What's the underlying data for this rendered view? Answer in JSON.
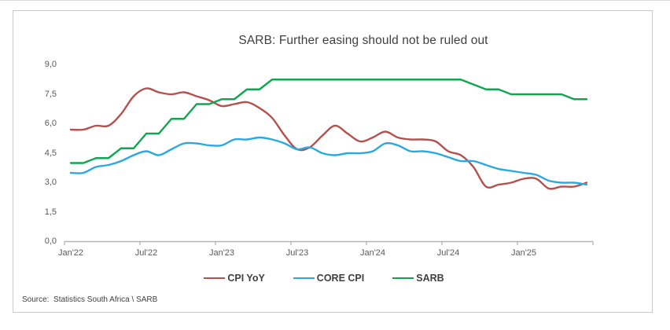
{
  "chart_data": {
    "type": "line",
    "title": "SARB: Further easing should not be ruled out",
    "source": "Source:  Statistics South Africa \\ SARB",
    "grid": false,
    "legend_position": "bottom",
    "decimal_separator": ",",
    "y_axis": {
      "ylim": [
        0,
        9
      ],
      "ticks": [
        0,
        1.5,
        3,
        4.5,
        6,
        7.5,
        9
      ],
      "tick_labels": [
        "0,0",
        "1,5",
        "3,0",
        "4,5",
        "6,0",
        "7,5",
        "9,0"
      ]
    },
    "x_axis": {
      "tick_labels": [
        "Jan'22",
        "Jul'22",
        "Jan'23",
        "Jul'23",
        "Jan'24",
        "Jul'24",
        "Jan'25"
      ]
    },
    "x": [
      "2022-01",
      "2022-02",
      "2022-03",
      "2022-04",
      "2022-05",
      "2022-06",
      "2022-07",
      "2022-08",
      "2022-09",
      "2022-10",
      "2022-11",
      "2022-12",
      "2023-01",
      "2023-02",
      "2023-03",
      "2023-04",
      "2023-05",
      "2023-06",
      "2023-07",
      "2023-08",
      "2023-09",
      "2023-10",
      "2023-11",
      "2023-12",
      "2024-01",
      "2024-02",
      "2024-03",
      "2024-04",
      "2024-05",
      "2024-06",
      "2024-07",
      "2024-08",
      "2024-09",
      "2024-10",
      "2024-11",
      "2024-12",
      "2025-01",
      "2025-02",
      "2025-03",
      "2025-04",
      "2025-05",
      "2025-06"
    ],
    "series": [
      {
        "name": "CPI YoY",
        "color": "#b4514c",
        "smooth": true,
        "values": [
          5.7,
          5.7,
          5.9,
          5.9,
          6.5,
          7.4,
          7.8,
          7.6,
          7.5,
          7.6,
          7.4,
          7.2,
          6.9,
          7.0,
          7.1,
          6.8,
          6.3,
          5.4,
          4.7,
          4.8,
          5.4,
          5.9,
          5.5,
          5.1,
          5.3,
          5.6,
          5.3,
          5.2,
          5.2,
          5.1,
          4.6,
          4.4,
          3.8,
          2.8,
          2.9,
          3.0,
          3.2,
          3.2,
          2.7,
          2.8,
          2.8,
          3.0
        ]
      },
      {
        "name": "CORE CPI",
        "color": "#29a9e0",
        "smooth": true,
        "values": [
          3.5,
          3.5,
          3.8,
          3.9,
          4.1,
          4.4,
          4.6,
          4.4,
          4.7,
          5.0,
          5.0,
          4.9,
          4.9,
          5.2,
          5.2,
          5.3,
          5.2,
          5.0,
          4.7,
          4.8,
          4.5,
          4.4,
          4.5,
          4.5,
          4.6,
          5.0,
          4.9,
          4.6,
          4.6,
          4.5,
          4.3,
          4.1,
          4.1,
          3.9,
          3.7,
          3.6,
          3.5,
          3.4,
          3.1,
          3.0,
          3.0,
          2.9
        ]
      },
      {
        "name": "SARB",
        "color": "#10a650",
        "smooth": false,
        "values": [
          4.0,
          4.0,
          4.25,
          4.25,
          4.75,
          4.75,
          5.5,
          5.5,
          6.25,
          6.25,
          7.0,
          7.0,
          7.25,
          7.25,
          7.75,
          7.75,
          8.25,
          8.25,
          8.25,
          8.25,
          8.25,
          8.25,
          8.25,
          8.25,
          8.25,
          8.25,
          8.25,
          8.25,
          8.25,
          8.25,
          8.25,
          8.25,
          8.0,
          7.75,
          7.75,
          7.5,
          7.5,
          7.5,
          7.5,
          7.5,
          7.25,
          7.25
        ]
      }
    ]
  }
}
